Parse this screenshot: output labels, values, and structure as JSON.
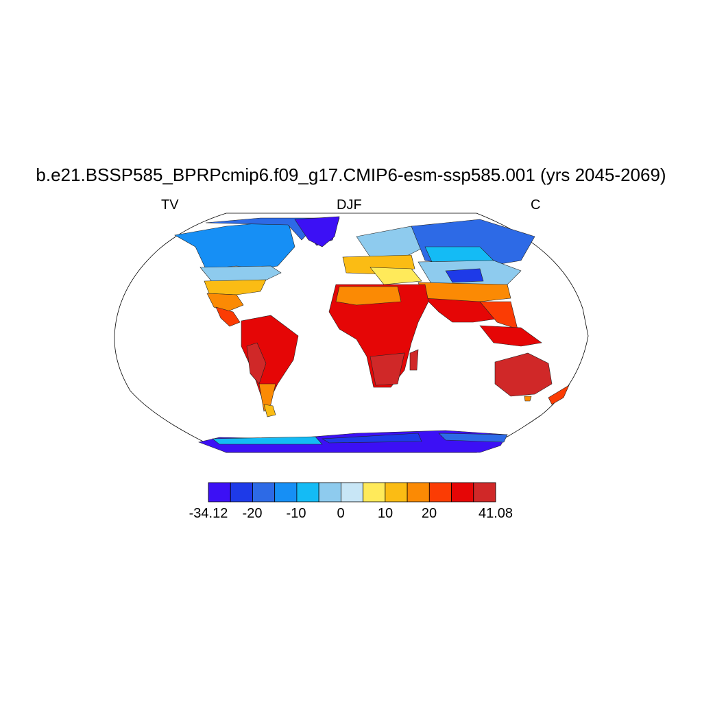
{
  "title": "b.e21.BSSP585_BPRPcmip6.f09_g17.CMIP6-esm-ssp585.001 (yrs 2045-2069)",
  "subtitle_left": "TV",
  "subtitle_center": "DJF",
  "subtitle_right": "C",
  "colorbar": {
    "colors": [
      "#3c10f5",
      "#1e3ae8",
      "#2d6ae6",
      "#168ff5",
      "#14bbf5",
      "#8ecbee",
      "#c8e6f6",
      "#ffea5a",
      "#fbbc14",
      "#fb8a04",
      "#fb3c04",
      "#e50606",
      "#d02828"
    ],
    "labels": [
      "-34.12",
      "-20",
      "-10",
      "0",
      "10",
      "20",
      "41.08"
    ],
    "min": -34.12,
    "max": 41.08
  }
}
